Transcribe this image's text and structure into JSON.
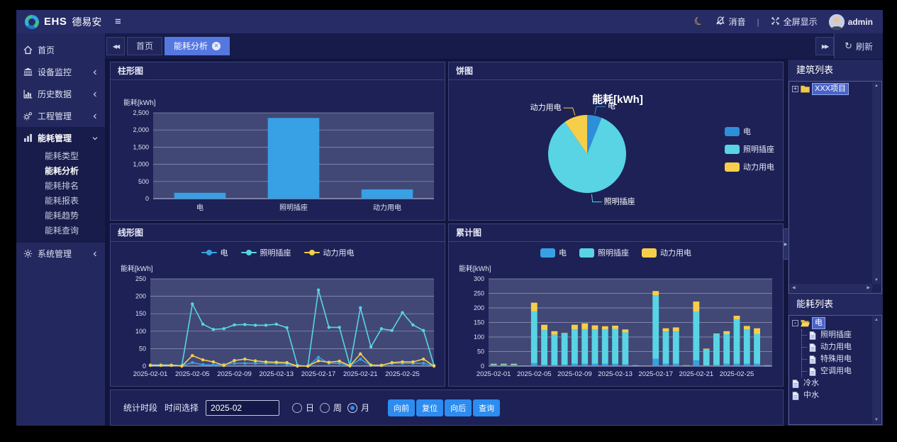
{
  "navbar": {
    "brand_bold": "EHS",
    "brand_rest": "德易安",
    "mute_label": "消音",
    "divider": "|",
    "fullscreen_label": "全屏显示",
    "username": "admin"
  },
  "tabs": {
    "refresh_label": "刷新",
    "items": [
      {
        "label": "首页",
        "active": false,
        "closable": false
      },
      {
        "label": "能耗分析",
        "active": true,
        "closable": true
      }
    ]
  },
  "sidebar": {
    "items": [
      {
        "label": "首页",
        "icon": "home-icon"
      },
      {
        "label": "设备监控",
        "icon": "monitor-icon",
        "collapsed": true
      },
      {
        "label": "历史数据",
        "icon": "history-chart-icon",
        "collapsed": true
      },
      {
        "label": "工程管理",
        "icon": "gears-icon",
        "collapsed": true
      },
      {
        "label": "能耗管理",
        "icon": "energy-chart-icon",
        "expanded": true,
        "children": [
          "能耗类型",
          "能耗分析",
          "能耗排名",
          "能耗报表",
          "能耗趋势",
          "能耗查询"
        ],
        "active_child": "能耗分析"
      },
      {
        "label": "系统管理",
        "icon": "gear-icon",
        "collapsed": true
      }
    ]
  },
  "rightbar": {
    "building_list_title": "建筑列表",
    "building_tree": [
      {
        "label": "XXX项目",
        "icon": "folder",
        "expander": "+",
        "selected": true
      }
    ],
    "energy_list_title": "能耗列表",
    "energy_tree": [
      {
        "label": "电",
        "icon": "folder-open",
        "expander": "-",
        "selected": true,
        "children": [
          {
            "label": "照明插座",
            "icon": "file"
          },
          {
            "label": "动力用电",
            "icon": "file"
          },
          {
            "label": "特殊用电",
            "icon": "file"
          },
          {
            "label": "空调用电",
            "icon": "file"
          }
        ]
      },
      {
        "label": "冷水",
        "icon": "file"
      },
      {
        "label": "中水",
        "icon": "file"
      }
    ]
  },
  "controls": {
    "period_label": "统计时段",
    "time_label": "时间选择",
    "time_value": "2025-02",
    "radios": [
      {
        "label": "日",
        "selected": false
      },
      {
        "label": "周",
        "selected": false
      },
      {
        "label": "月",
        "selected": true
      }
    ],
    "buttons": [
      "向前",
      "复位",
      "向后",
      "查询"
    ]
  },
  "colors": {
    "elec_blue": "#38a0e4",
    "light_cyan": "#58d4e4",
    "power_yellow": "#f6ce4a",
    "accent_button": "#2d8cf0",
    "active_tab": "#5577e0",
    "plot_bg": "#414876"
  },
  "chart_data": [
    {
      "type": "bar",
      "panel_title": "柱形图",
      "ylabel": "能耗[kWh]",
      "categories": [
        "电",
        "照明插座",
        "动力用电"
      ],
      "values": [
        170,
        2350,
        270
      ],
      "ylim": [
        0,
        2500
      ],
      "ytick_step": 500,
      "bar_color": "#38a0e4",
      "grid": true
    },
    {
      "type": "pie",
      "panel_title": "饼图",
      "title": "能耗[kWh]",
      "labels": [
        "电",
        "照明插座",
        "动力用电"
      ],
      "values": [
        170,
        2350,
        270
      ],
      "colors": [
        "#2d8fd8",
        "#58d4e4",
        "#f6ce4a"
      ],
      "legend_position": "right"
    },
    {
      "type": "line",
      "panel_title": "线形图",
      "ylabel": "能耗[kWh]",
      "ylim": [
        0,
        250
      ],
      "ytick_step": 50,
      "xtick_every": 4,
      "x": [
        "2025-02-01",
        "2025-02-02",
        "2025-02-03",
        "2025-02-04",
        "2025-02-05",
        "2025-02-06",
        "2025-02-07",
        "2025-02-08",
        "2025-02-09",
        "2025-02-10",
        "2025-02-11",
        "2025-02-12",
        "2025-02-13",
        "2025-02-14",
        "2025-02-15",
        "2025-02-16",
        "2025-02-17",
        "2025-02-18",
        "2025-02-19",
        "2025-02-20",
        "2025-02-21",
        "2025-02-22",
        "2025-02-23",
        "2025-02-24",
        "2025-02-25",
        "2025-02-26",
        "2025-02-27",
        "2025-02-28"
      ],
      "series": [
        {
          "name": "电",
          "color": "#38a0e4",
          "values": [
            3,
            3,
            3,
            1,
            10,
            4,
            3,
            5,
            8,
            8,
            8,
            8,
            8,
            6,
            1,
            0,
            25,
            8,
            8,
            1,
            20,
            2,
            3,
            8,
            8,
            8,
            8,
            1
          ]
        },
        {
          "name": "照明插座",
          "color": "#58d4e4",
          "values": [
            3,
            3,
            3,
            1,
            178,
            120,
            105,
            107,
            118,
            119,
            117,
            117,
            120,
            110,
            2,
            0,
            218,
            111,
            111,
            1,
            167,
            55,
            107,
            102,
            153,
            118,
            102,
            2
          ]
        },
        {
          "name": "动力用电",
          "color": "#f6ce4a",
          "values": [
            2,
            2,
            2,
            0,
            30,
            18,
            12,
            2,
            16,
            20,
            15,
            12,
            11,
            10,
            0,
            0,
            15,
            11,
            14,
            1,
            35,
            3,
            2,
            10,
            12,
            12,
            20,
            0
          ]
        }
      ],
      "grid": true
    },
    {
      "type": "stacked_bar",
      "panel_title": "累计图",
      "ylabel": "能耗[kWh]",
      "ylim": [
        0,
        300
      ],
      "ytick_step": 50,
      "xtick_every": 4,
      "x": [
        "2025-02-01",
        "2025-02-02",
        "2025-02-03",
        "2025-02-04",
        "2025-02-05",
        "2025-02-06",
        "2025-02-07",
        "2025-02-08",
        "2025-02-09",
        "2025-02-10",
        "2025-02-11",
        "2025-02-12",
        "2025-02-13",
        "2025-02-14",
        "2025-02-15",
        "2025-02-16",
        "2025-02-17",
        "2025-02-18",
        "2025-02-19",
        "2025-02-20",
        "2025-02-21",
        "2025-02-22",
        "2025-02-23",
        "2025-02-24",
        "2025-02-25",
        "2025-02-26",
        "2025-02-27",
        "2025-02-28"
      ],
      "series": [
        {
          "name": "电",
          "color": "#38a0e4",
          "values": [
            3,
            3,
            3,
            1,
            10,
            4,
            3,
            5,
            8,
            8,
            8,
            8,
            8,
            6,
            1,
            0,
            25,
            8,
            8,
            1,
            20,
            2,
            3,
            8,
            8,
            8,
            8,
            1
          ]
        },
        {
          "name": "照明插座",
          "color": "#58d4e4",
          "values": [
            3,
            3,
            3,
            1,
            178,
            120,
            105,
            107,
            118,
            119,
            117,
            117,
            120,
            110,
            2,
            0,
            218,
            111,
            111,
            1,
            167,
            55,
            107,
            102,
            153,
            118,
            102,
            2
          ]
        },
        {
          "name": "动力用电",
          "color": "#f6ce4a",
          "values": [
            2,
            2,
            2,
            0,
            30,
            18,
            12,
            2,
            16,
            20,
            15,
            12,
            11,
            10,
            0,
            0,
            15,
            11,
            14,
            1,
            35,
            3,
            2,
            10,
            12,
            12,
            20,
            0
          ]
        }
      ],
      "grid": true
    }
  ]
}
